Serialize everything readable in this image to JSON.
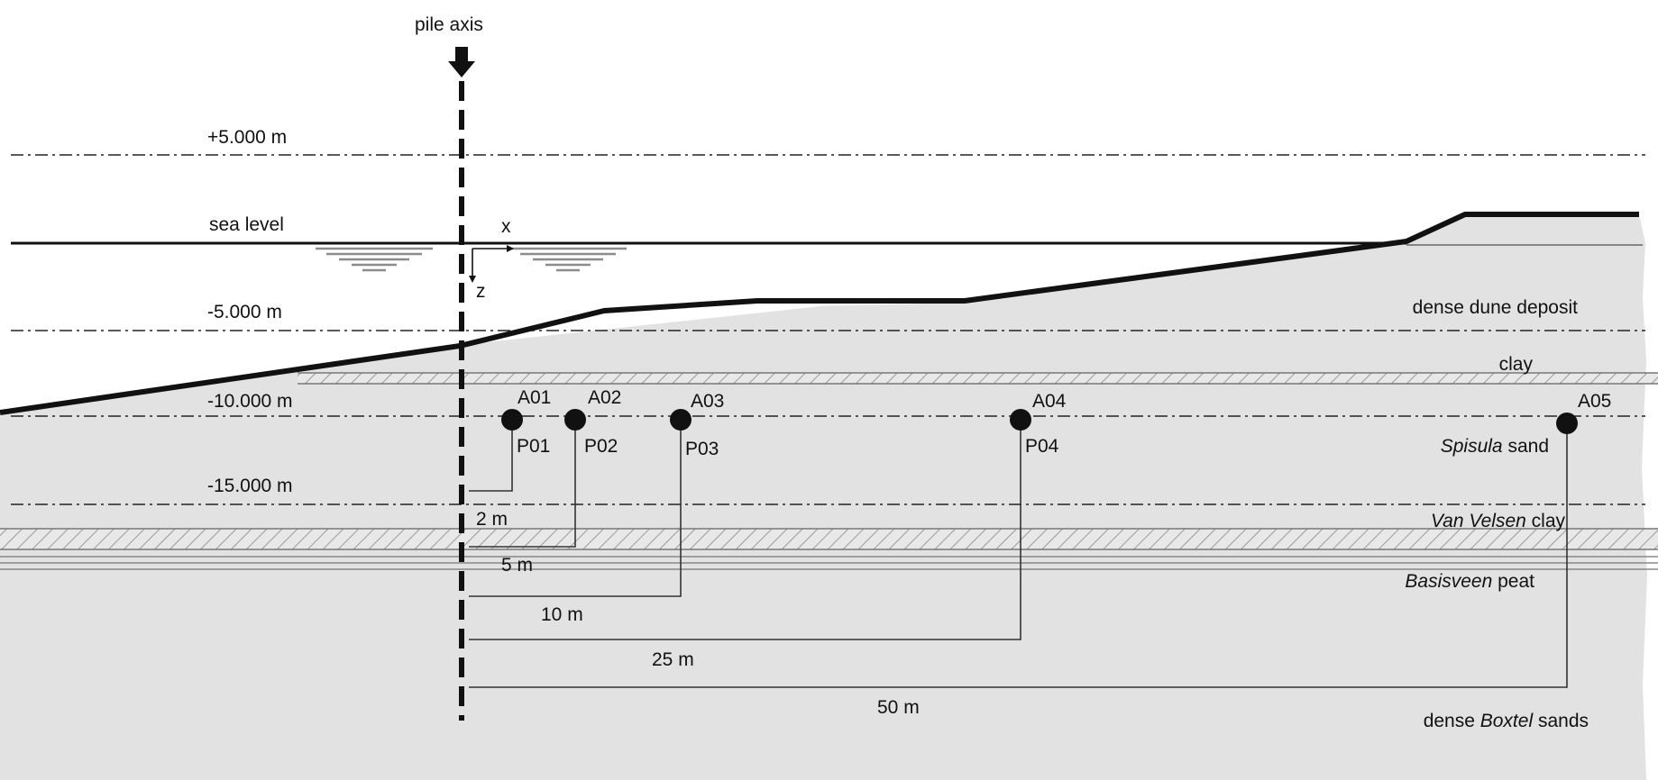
{
  "pile_axis_label": "pile axis",
  "levels": {
    "plus5": "+5.000 m",
    "minus5": "-5.000 m",
    "minus10": "-10.000 m",
    "minus15": "-15.000 m"
  },
  "sea_level_label": "sea level",
  "axis_labels": {
    "x": "x",
    "z": "z"
  },
  "layers": {
    "dune": "dense dune deposit",
    "clay": "clay",
    "spisula_italic": "Spisula",
    "spisula_rest": " sand",
    "vanvelsen_italic": "Van Velsen",
    "vanvelsen_rest": " clay",
    "basisveen_italic": "Basisveen",
    "basisveen_rest": " peat",
    "boxtel_pre": "dense ",
    "boxtel_italic": "Boxtel",
    "boxtel_rest": " sands"
  },
  "sensors": {
    "A01": "A01",
    "A02": "A02",
    "A03": "A03",
    "A04": "A04",
    "A05": "A05",
    "P01": "P01",
    "P02": "P02",
    "P03": "P03",
    "P04": "P04"
  },
  "distances": {
    "d2": "2 m",
    "d5": "5 m",
    "d10": "10 m",
    "d25": "25 m",
    "d50": "50 m"
  },
  "colors": {
    "soil": "#e2e2e2",
    "line": "#111111",
    "hatch": "#999999",
    "wave": "#8c8c8c"
  }
}
